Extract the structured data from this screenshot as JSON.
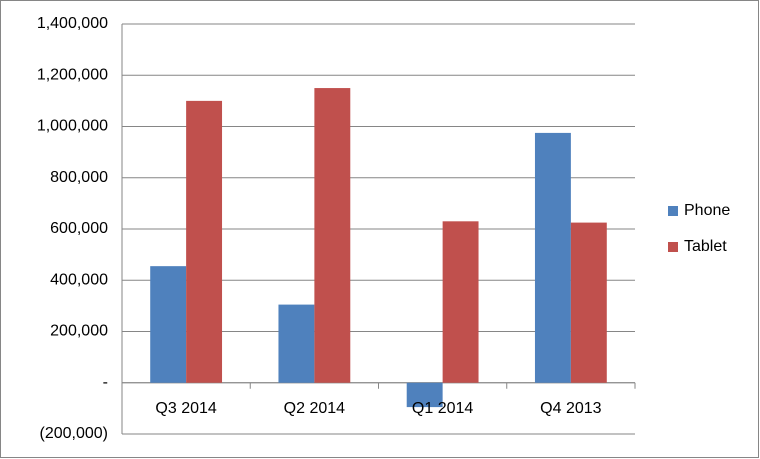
{
  "chart_data": {
    "type": "bar",
    "categories": [
      "Q3 2014",
      "Q2 2014",
      "Q1 2014",
      "Q4 2013"
    ],
    "series": [
      {
        "name": "Phone",
        "color": "#4f81bd",
        "values": [
          455000,
          305000,
          -95000,
          975000
        ]
      },
      {
        "name": "Tablet",
        "color": "#c0504d",
        "values": [
          1100000,
          1150000,
          630000,
          625000
        ]
      }
    ],
    "ylim": [
      -200000,
      1400000
    ],
    "yticks": [
      {
        "value": -200000,
        "label": "(200,000)"
      },
      {
        "value": 0,
        "label": "-"
      },
      {
        "value": 200000,
        "label": "200,000"
      },
      {
        "value": 400000,
        "label": "400,000"
      },
      {
        "value": 600000,
        "label": "600,000"
      },
      {
        "value": 800000,
        "label": "800,000"
      },
      {
        "value": 1000000,
        "label": "1,000,000"
      },
      {
        "value": 1200000,
        "label": "1,200,000"
      },
      {
        "value": 1400000,
        "label": "1,400,000"
      }
    ],
    "grid": true,
    "legend": "right"
  }
}
